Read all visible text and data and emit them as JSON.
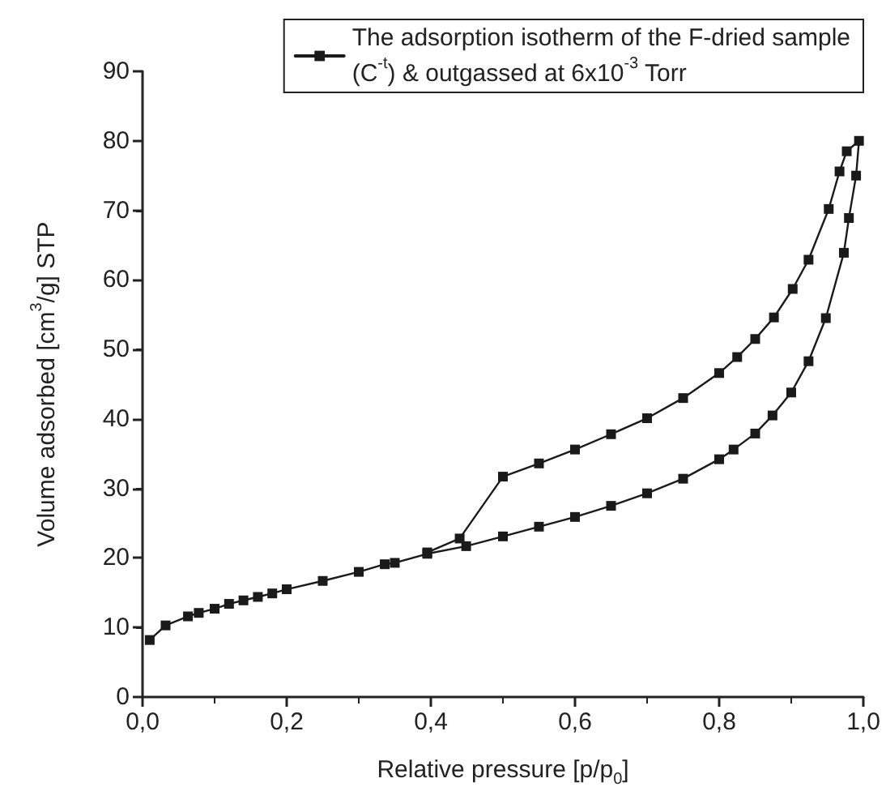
{
  "chart_data": {
    "type": "line",
    "xlabel": "Relative pressure [p/p$_{0}$]",
    "ylabel": "Volume adsorbed [cm$^{3}$/g] STP",
    "xlim": [
      0,
      1
    ],
    "ylim": [
      0,
      90
    ],
    "xticks": [
      {
        "value": 0,
        "label": "0,0"
      },
      {
        "value": 0.2,
        "label": "0,2"
      },
      {
        "value": 0.4,
        "label": "0,4"
      },
      {
        "value": 0.6,
        "label": "0,6"
      },
      {
        "value": 0.8,
        "label": "0,8"
      },
      {
        "value": 1,
        "label": "1,0"
      }
    ],
    "yticks": [
      0,
      10,
      20,
      30,
      40,
      50,
      60,
      70,
      80,
      90
    ],
    "grid": false,
    "legend": "top right",
    "marker": "square",
    "line_style": "solid",
    "series": [
      {
        "name": "The adsorption isotherm of the F-dried sample (C$^{-t}$) & outgassed at 6x10$^{-3}$ Torr",
        "color": "#1a1a1a",
        "x": [
          0.01,
          0.032,
          0.063,
          0.078,
          0.1,
          0.12,
          0.14,
          0.16,
          0.18,
          0.2,
          0.25,
          0.3,
          0.336,
          0.35,
          0.395,
          0.449,
          0.5,
          0.55,
          0.6,
          0.65,
          0.7,
          0.75,
          0.8,
          0.82,
          0.85,
          0.874,
          0.9,
          0.924,
          0.948,
          0.973,
          0.98,
          0.99,
          0.994,
          0.977,
          0.967,
          0.952,
          0.924,
          0.902,
          0.876,
          0.85,
          0.825,
          0.8,
          0.75,
          0.7,
          0.65,
          0.6,
          0.55,
          0.5,
          0.44,
          0.395
        ],
        "values": [
          8.2,
          10.3,
          11.6,
          12.1,
          12.7,
          13.4,
          13.9,
          14.4,
          14.9,
          15.5,
          16.7,
          18.0,
          19.1,
          19.3,
          20.6,
          21.7,
          23.1,
          24.5,
          25.9,
          27.5,
          29.3,
          31.4,
          34.2,
          35.6,
          37.9,
          40.5,
          43.8,
          48.3,
          54.5,
          63.9,
          68.9,
          75.0,
          80.0,
          78.5,
          75.6,
          70.2,
          62.9,
          58.7,
          54.6,
          51.5,
          48.9,
          46.6,
          43.0,
          40.1,
          37.8,
          35.6,
          33.6,
          31.7,
          22.8,
          20.8
        ]
      }
    ]
  }
}
